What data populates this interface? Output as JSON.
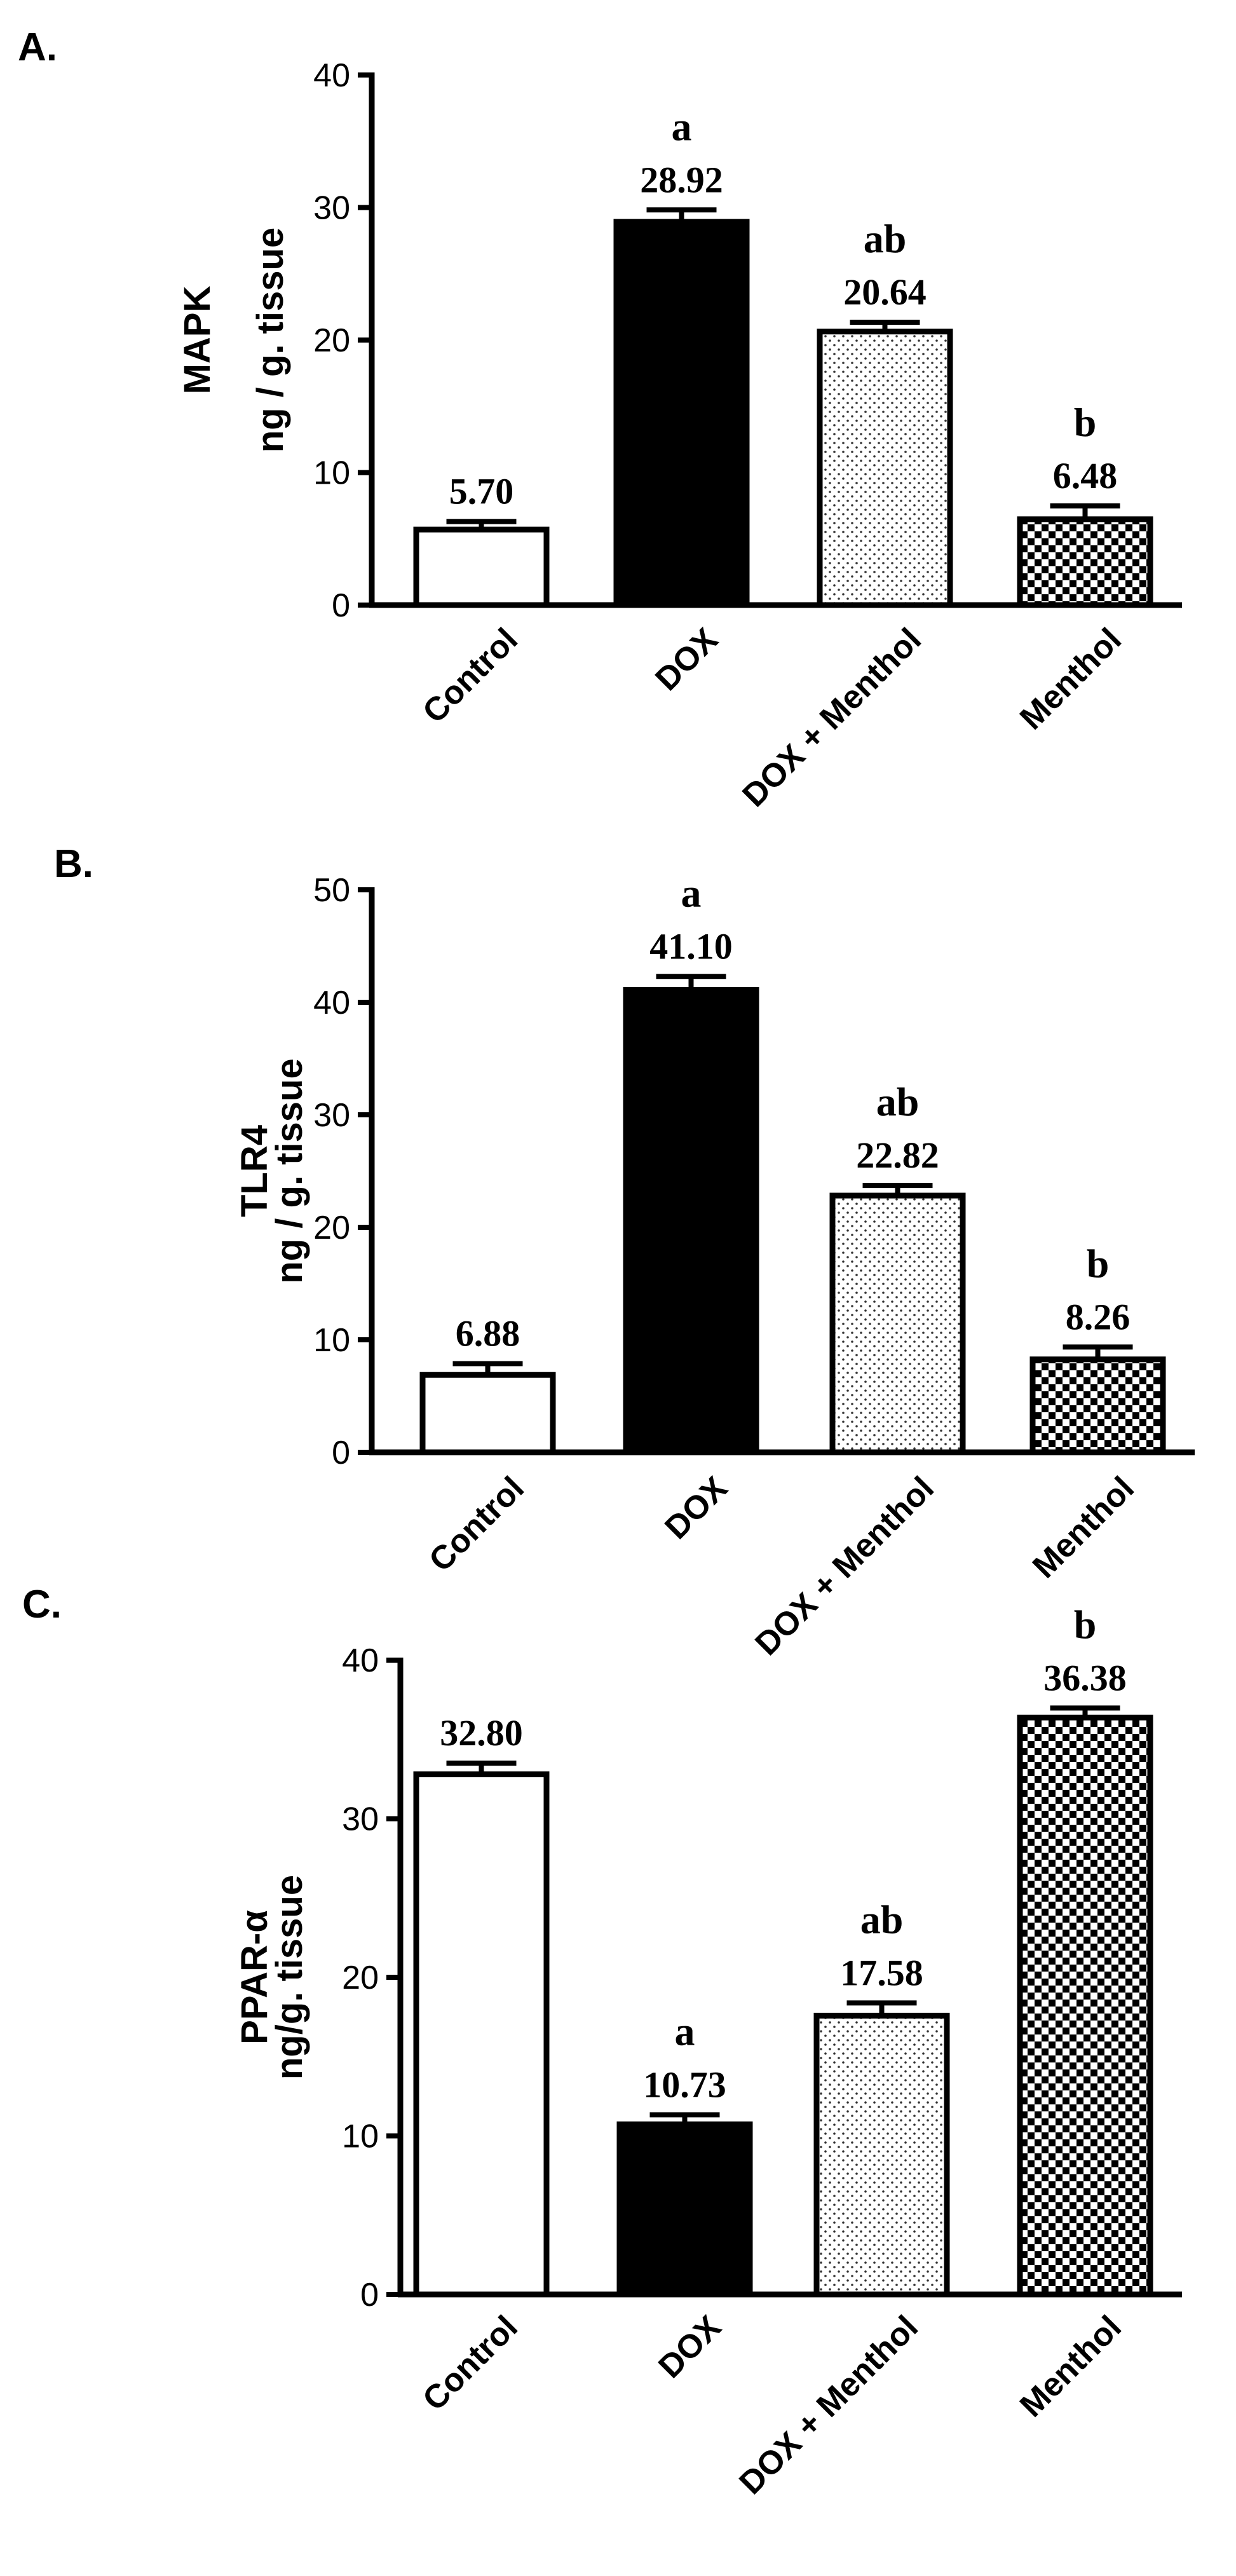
{
  "figure": {
    "patterns": [
      "white",
      "black",
      "dots",
      "checker"
    ]
  },
  "chart_data": [
    {
      "type": "bar",
      "panel": "A.",
      "categories": [
        "Control",
        "DOX",
        "DOX + Menthol",
        "Menthol"
      ],
      "values": [
        5.7,
        28.92,
        20.64,
        6.48
      ],
      "errors": [
        0.6,
        0.9,
        0.7,
        1.0
      ],
      "value_labels": [
        "5.70",
        "28.92",
        "20.64",
        "6.48"
      ],
      "annotations": [
        "",
        "a",
        "ab",
        "b"
      ],
      "ylabel_lines": [
        "MAPK",
        "ng / g. tissue"
      ],
      "ylim": [
        0,
        40
      ],
      "yticks": [
        0,
        10,
        20,
        30,
        40
      ]
    },
    {
      "type": "bar",
      "panel": "B.",
      "categories": [
        "Control",
        "DOX",
        "DOX + Menthol",
        "Menthol"
      ],
      "values": [
        6.88,
        41.1,
        22.82,
        8.26
      ],
      "errors": [
        1.0,
        1.2,
        0.9,
        1.1
      ],
      "value_labels": [
        "6.88",
        "41.10",
        "22.82",
        "8.26"
      ],
      "annotations": [
        "",
        "a",
        "ab",
        "b"
      ],
      "ylabel_lines": [
        "TLR4",
        "ng / g. tissue"
      ],
      "ylim": [
        0,
        50
      ],
      "yticks": [
        0,
        10,
        20,
        30,
        40,
        50
      ]
    },
    {
      "type": "bar",
      "panel": "C.",
      "categories": [
        "Control",
        "DOX",
        "DOX + Menthol",
        "Menthol"
      ],
      "values": [
        32.8,
        10.73,
        17.58,
        36.38
      ],
      "errors": [
        0.7,
        0.6,
        0.8,
        0.6
      ],
      "value_labels": [
        "32.80",
        "10.73",
        "17.58",
        "36.38"
      ],
      "annotations": [
        "",
        "a",
        "ab",
        "b"
      ],
      "ylabel_lines": [
        "PPAR-α",
        "ng/g. tissue"
      ],
      "ylim": [
        0,
        40
      ],
      "yticks": [
        0,
        10,
        20,
        30,
        40
      ]
    }
  ]
}
